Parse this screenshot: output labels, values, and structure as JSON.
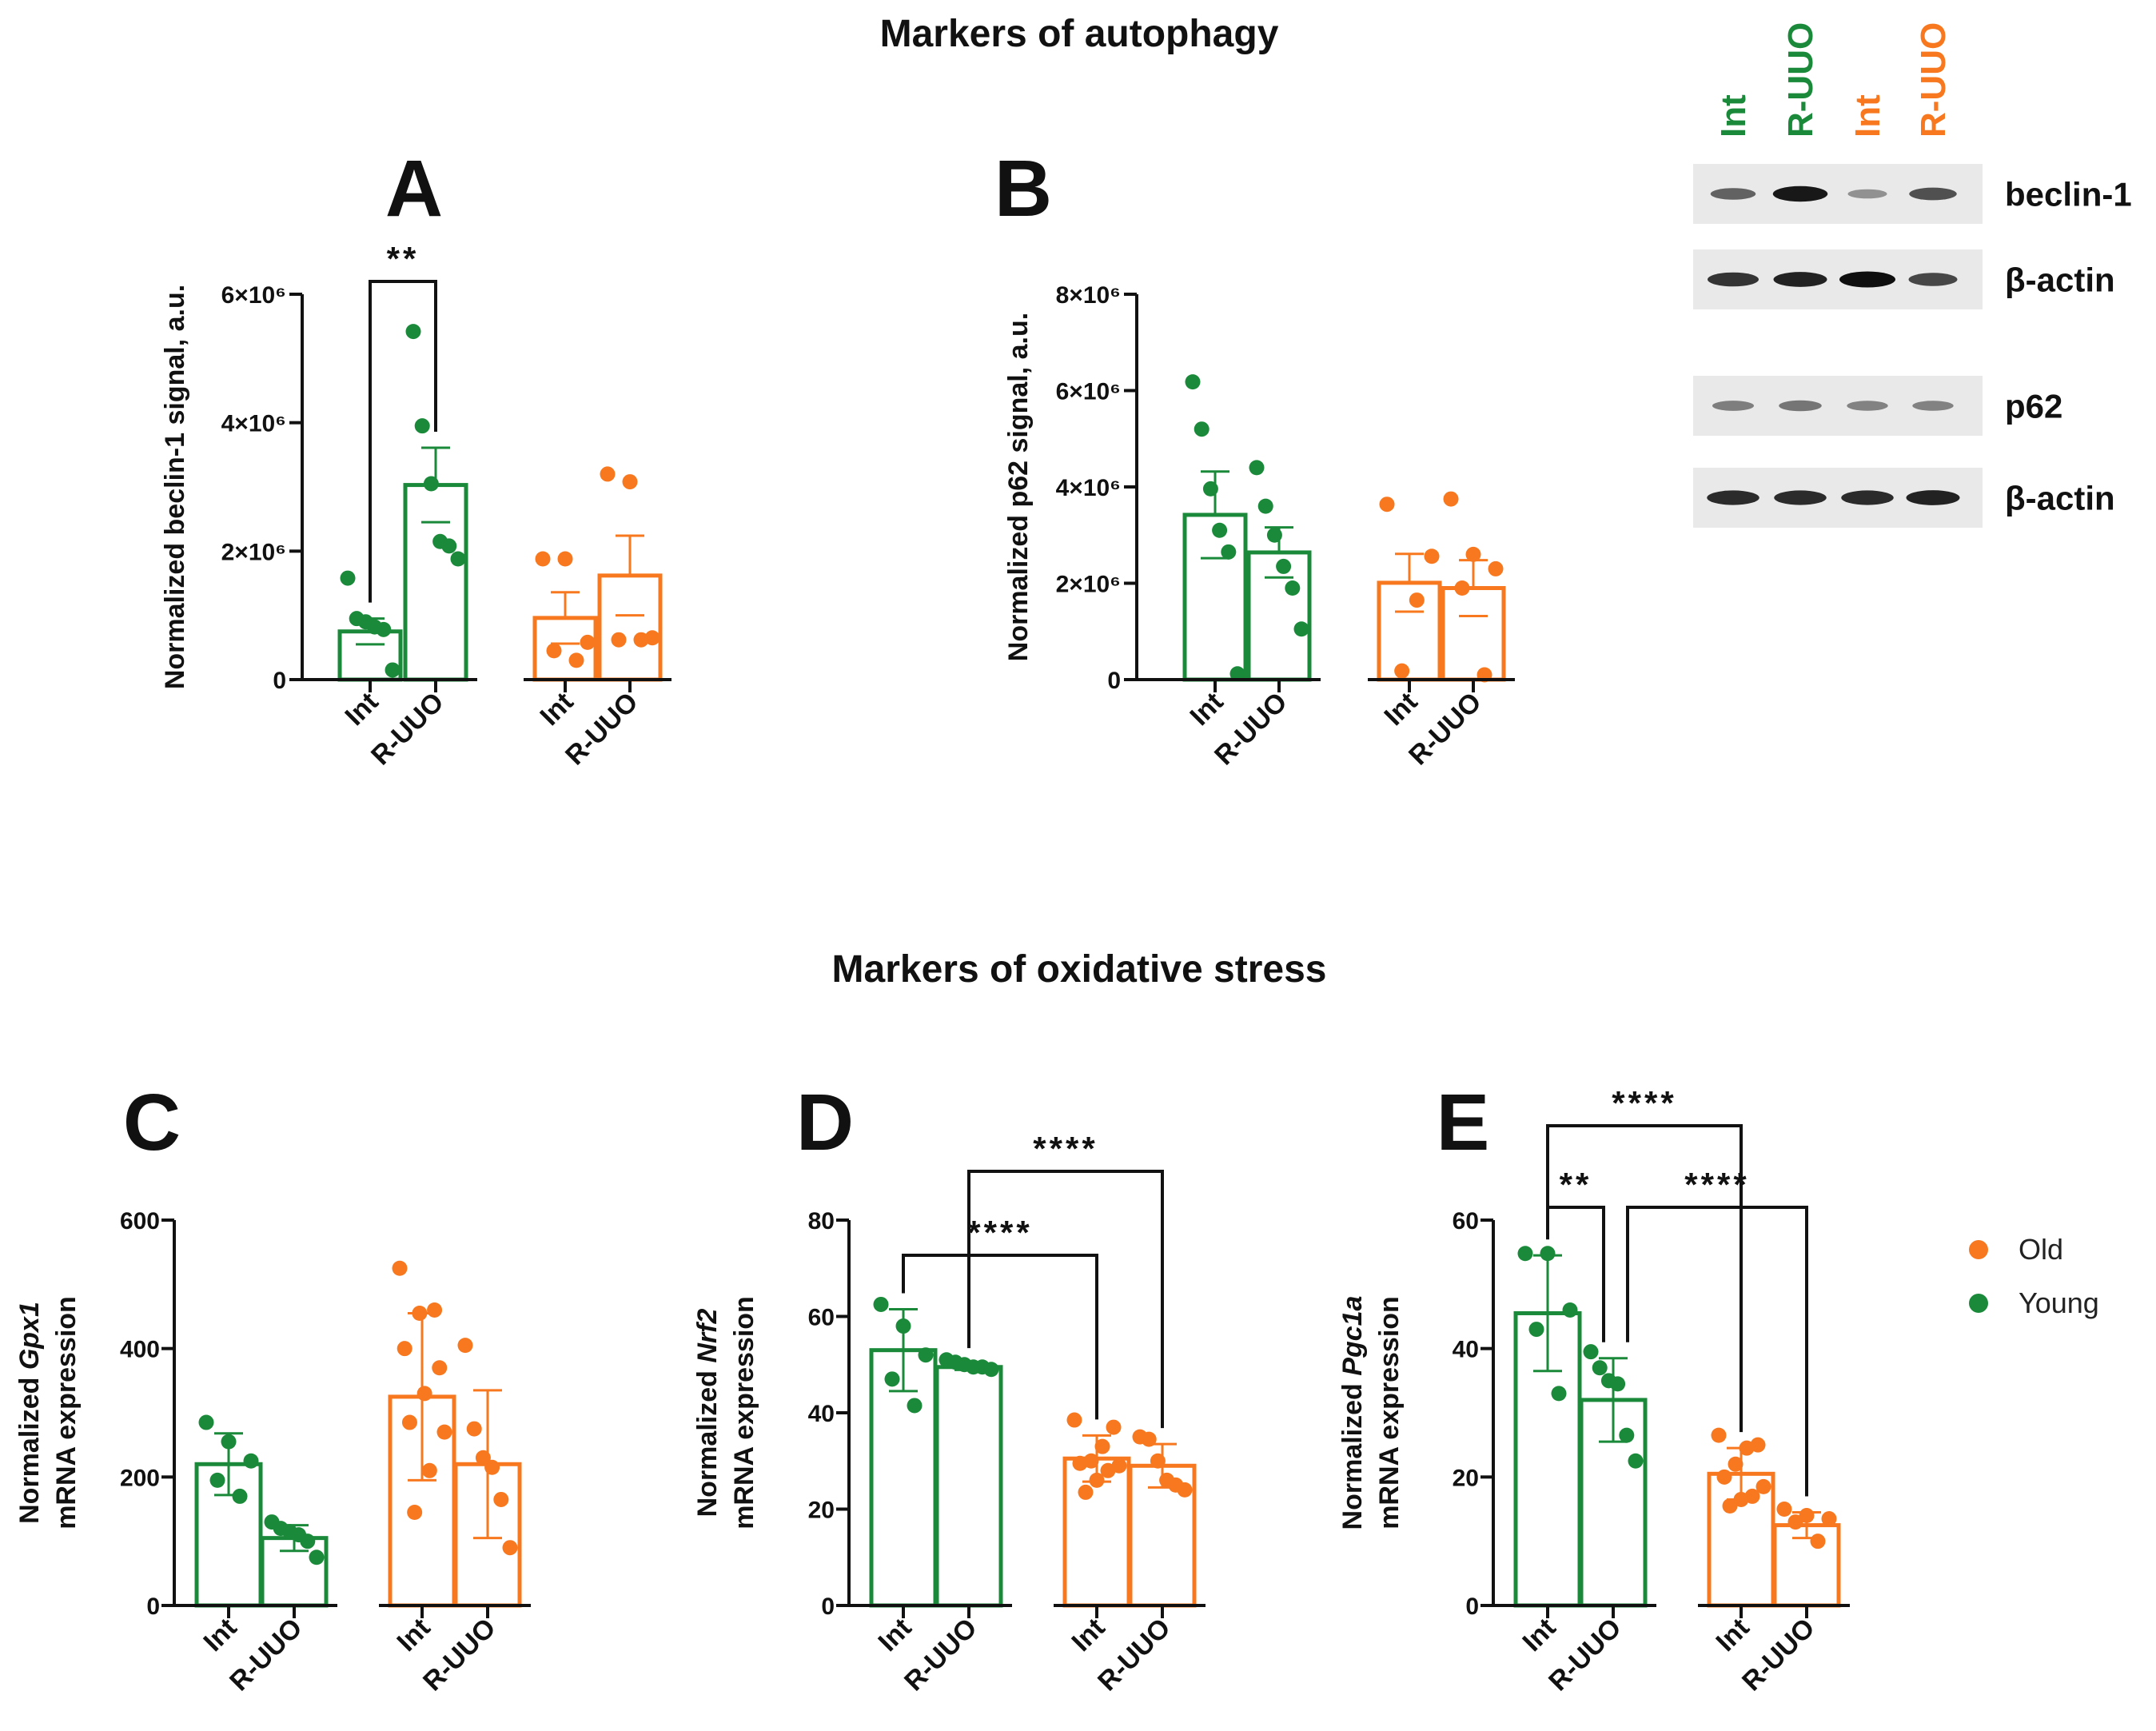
{
  "section_titles": {
    "autophagy": "Markers of autophagy",
    "oxidative": "Markers of oxidative stress"
  },
  "colors": {
    "young": "#1a8a3a",
    "old": "#f7781e",
    "ink": "#111111"
  },
  "legend": {
    "items": [
      {
        "label": "Old",
        "color": "#f7781e"
      },
      {
        "label": "Young",
        "color": "#1a8a3a"
      }
    ]
  },
  "blot": {
    "lanes": [
      {
        "label": "Int",
        "color": "#1a8a3a"
      },
      {
        "label": "R-UUO",
        "color": "#1a8a3a"
      },
      {
        "label": "Int",
        "color": "#f7781e"
      },
      {
        "label": "R-UUO",
        "color": "#f7781e"
      }
    ],
    "bands": [
      {
        "label": "beclin-1",
        "intensities": [
          0.55,
          0.95,
          0.3,
          0.65
        ]
      },
      {
        "label": "β-actin",
        "intensities": [
          0.8,
          0.9,
          1.0,
          0.7
        ]
      },
      {
        "label": "p62",
        "intensities": [
          0.4,
          0.45,
          0.38,
          0.38
        ]
      },
      {
        "label": "β-actin",
        "intensities": [
          0.85,
          0.85,
          0.85,
          0.9
        ]
      }
    ]
  },
  "chart_data": [
    {
      "panel": "A",
      "type": "bar",
      "ylabel": "Normalized beclin-1 signal, a.u.",
      "ylim": [
        0,
        6000000
      ],
      "yticks": [
        {
          "value": 0,
          "label": "0"
        },
        {
          "value": 2000000,
          "label": "2×10⁶"
        },
        {
          "value": 4000000,
          "label": "4×10⁶"
        },
        {
          "value": 6000000,
          "label": "6×10⁶"
        }
      ],
      "categories": [
        "Int",
        "R-UUO",
        "Int",
        "R-UUO"
      ],
      "groups": [
        "Young",
        "Young",
        "Old",
        "Old"
      ],
      "means": [
        750000,
        3030000,
        960000,
        1620000
      ],
      "errors": [
        200000,
        580000,
        400000,
        620000
      ],
      "points": [
        [
          1580000,
          950000,
          900000,
          820000,
          780000,
          150000
        ],
        [
          5420000,
          3950000,
          3050000,
          2150000,
          2080000,
          1880000
        ],
        [
          1880000,
          1880000,
          580000,
          450000,
          300000
        ],
        [
          3200000,
          3080000,
          650000,
          620000,
          620000
        ]
      ],
      "significance": [
        {
          "from": 0,
          "to": 1,
          "label": "**"
        }
      ]
    },
    {
      "panel": "B",
      "type": "bar",
      "ylabel": "Normalized p62 signal, a.u.",
      "ylim": [
        0,
        8000000
      ],
      "yticks": [
        {
          "value": 0,
          "label": "0"
        },
        {
          "value": 2000000,
          "label": "2×10⁶"
        },
        {
          "value": 4000000,
          "label": "4×10⁶"
        },
        {
          "value": 6000000,
          "label": "6×10⁶"
        },
        {
          "value": 8000000,
          "label": "8×10⁶"
        }
      ],
      "categories": [
        "Int",
        "R-UUO",
        "Int",
        "R-UUO"
      ],
      "groups": [
        "Young",
        "Young",
        "Old",
        "Old"
      ],
      "means": [
        3420000,
        2640000,
        2010000,
        1900000
      ],
      "errors": [
        900000,
        520000,
        600000,
        580000
      ],
      "points": [
        [
          6180000,
          5200000,
          3960000,
          3100000,
          2650000,
          120000
        ],
        [
          4400000,
          3600000,
          3000000,
          2350000,
          1900000,
          1050000
        ],
        [
          3640000,
          2560000,
          1650000,
          180000
        ],
        [
          3750000,
          2600000,
          2300000,
          1900000,
          100000
        ]
      ],
      "significance": []
    },
    {
      "panel": "C",
      "type": "bar",
      "ylabel_prefix": "Normalized ",
      "ylabel_gene": "Gpx1",
      "ylabel_line2": "mRNA expression",
      "ylim": [
        0,
        600
      ],
      "yticks": [
        {
          "value": 0,
          "label": "0"
        },
        {
          "value": 200,
          "label": "200"
        },
        {
          "value": 400,
          "label": "400"
        },
        {
          "value": 600,
          "label": "600"
        }
      ],
      "categories": [
        "Int",
        "R-UUO",
        "Int",
        "R-UUO"
      ],
      "groups": [
        "Young",
        "Young",
        "Old",
        "Old"
      ],
      "means": [
        220,
        105,
        325,
        220
      ],
      "errors": [
        48,
        20,
        130,
        115
      ],
      "points": [
        [
          285,
          255,
          225,
          195,
          170
        ],
        [
          130,
          120,
          115,
          110,
          100,
          75
        ],
        [
          525,
          460,
          455,
          400,
          370,
          330,
          285,
          270,
          210,
          145
        ],
        [
          405,
          275,
          230,
          215,
          165,
          90
        ]
      ],
      "significance": []
    },
    {
      "panel": "D",
      "type": "bar",
      "ylabel_prefix": "Normalized ",
      "ylabel_gene": "Nrf2",
      "ylabel_line2": "mRNA expression",
      "ylim": [
        0,
        80
      ],
      "yticks": [
        {
          "value": 0,
          "label": "0"
        },
        {
          "value": 20,
          "label": "20"
        },
        {
          "value": 40,
          "label": "40"
        },
        {
          "value": 60,
          "label": "60"
        },
        {
          "value": 80,
          "label": "80"
        }
      ],
      "categories": [
        "Int",
        "R-UUO",
        "Int",
        "R-UUO"
      ],
      "groups": [
        "Young",
        "Young",
        "Old",
        "Old"
      ],
      "means": [
        53,
        49.5,
        30.5,
        29
      ],
      "errors": [
        8.5,
        0.6,
        4.8,
        4.5
      ],
      "points": [
        [
          62.5,
          58,
          52,
          47,
          41.5
        ],
        [
          51,
          50.5,
          50,
          49.5,
          49.5,
          49
        ],
        [
          38.5,
          37,
          33,
          30,
          29.5,
          29,
          28,
          26,
          23.5
        ],
        [
          35,
          34.5,
          30,
          26,
          25,
          24
        ]
      ],
      "significance": [
        {
          "from": 0,
          "to": 2,
          "label": "****"
        },
        {
          "from": 1,
          "to": 3,
          "label": "****"
        }
      ]
    },
    {
      "panel": "E",
      "type": "bar",
      "ylabel_prefix": "Normalized ",
      "ylabel_gene": "Pgc1a",
      "ylabel_line2": "mRNA expression",
      "ylim": [
        0,
        60
      ],
      "yticks": [
        {
          "value": 0,
          "label": "0"
        },
        {
          "value": 20,
          "label": "20"
        },
        {
          "value": 40,
          "label": "40"
        },
        {
          "value": 60,
          "label": "60"
        }
      ],
      "categories": [
        "Int",
        "R-UUO",
        "Int",
        "R-UUO"
      ],
      "groups": [
        "Young",
        "Young",
        "Old",
        "Old"
      ],
      "means": [
        45.5,
        32,
        20.5,
        12.5
      ],
      "errors": [
        9,
        6.5,
        4,
        2
      ],
      "points": [
        [
          54.8,
          54.8,
          46,
          43,
          33
        ],
        [
          39.5,
          37,
          35,
          34.5,
          26.5,
          22.5
        ],
        [
          26.5,
          25,
          24.5,
          22,
          20,
          18.5,
          17,
          16.5,
          15.5
        ],
        [
          15,
          14,
          13.5,
          13,
          10
        ]
      ],
      "significance": [
        {
          "from": 0,
          "to": 2,
          "label": "****"
        },
        {
          "from": 0,
          "to": 1,
          "label": "**"
        },
        {
          "from": 1,
          "to": 3,
          "label": "****"
        }
      ]
    }
  ]
}
